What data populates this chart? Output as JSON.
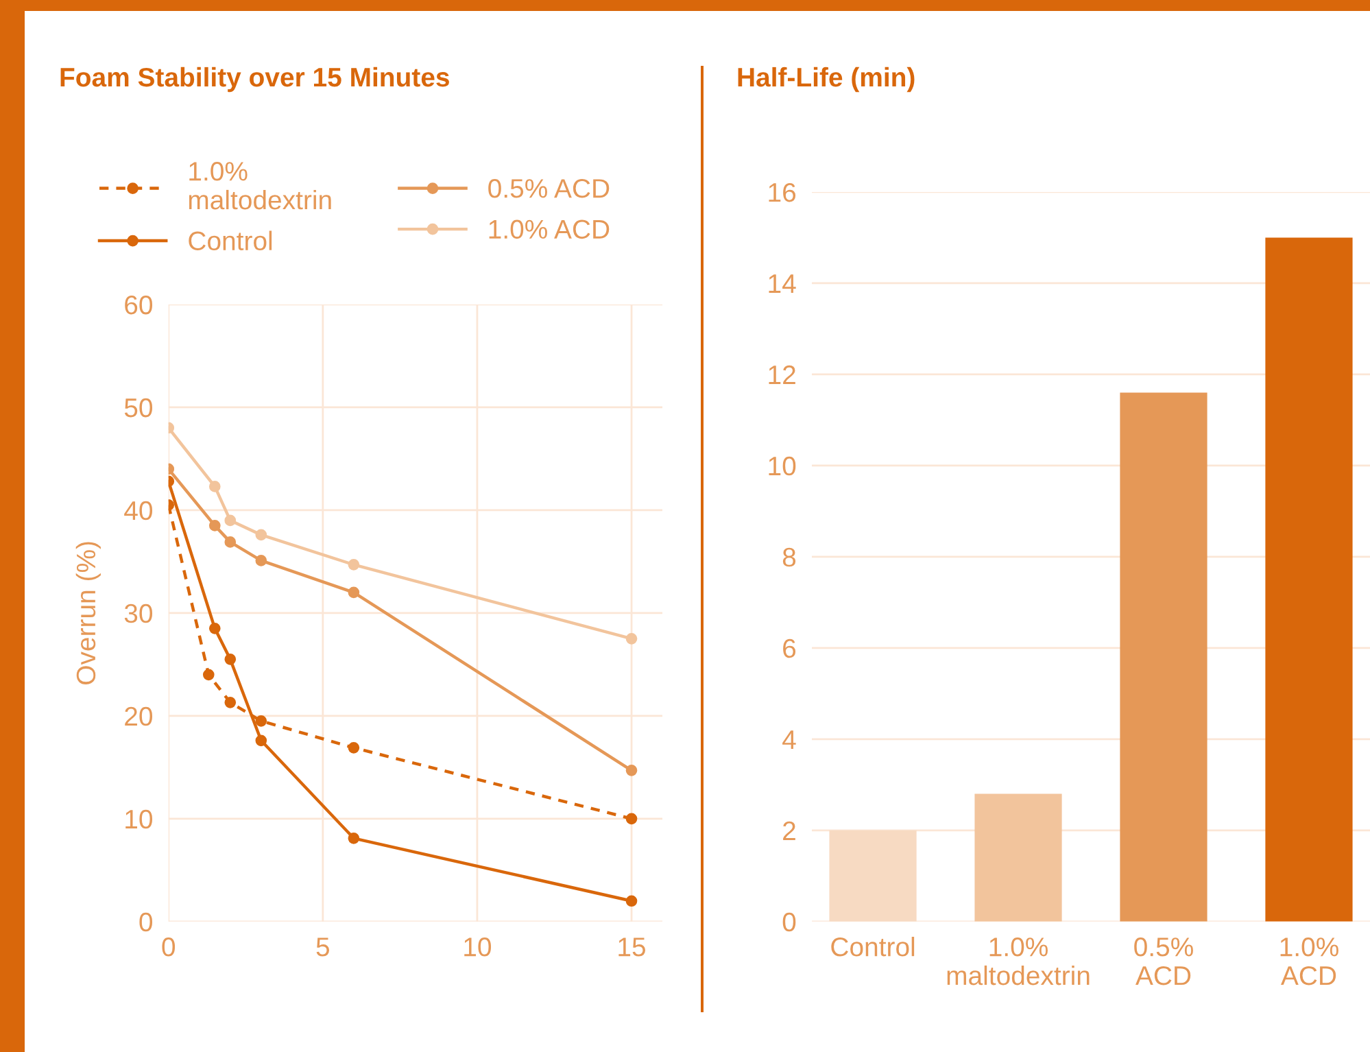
{
  "chart_data": [
    {
      "type": "line",
      "title": "Foam Stability over 15 Minutes",
      "ylabel": "Overrun (%)",
      "xlim": [
        0,
        16
      ],
      "ylim": [
        0,
        60
      ],
      "xticks": [
        0,
        5,
        10,
        15
      ],
      "yticks": [
        0,
        10,
        20,
        30,
        40,
        50,
        60
      ],
      "grid": true,
      "legend": "top",
      "marker": "circle",
      "series": [
        {
          "name": "1.0%\nmaltodextrin",
          "color": "#d9670b",
          "line_style": "dashed",
          "x": [
            0,
            1.3,
            2,
            3,
            6,
            15
          ],
          "values": [
            40.5,
            24,
            21.3,
            19.5,
            16.9,
            10
          ]
        },
        {
          "name": "Control",
          "color": "#d9670b",
          "line_style": "solid",
          "x": [
            0,
            1.5,
            2,
            3,
            6,
            15
          ],
          "values": [
            42.8,
            28.5,
            25.5,
            17.6,
            8.1,
            2.0
          ]
        },
        {
          "name": "0.5% ACD",
          "color": "#e59857",
          "line_style": "solid",
          "x": [
            0,
            1.5,
            2,
            3,
            6,
            15
          ],
          "values": [
            44,
            38.5,
            36.9,
            35.1,
            32,
            14.7
          ]
        },
        {
          "name": "1.0% ACD",
          "color": "#f2c49c",
          "line_style": "solid",
          "x": [
            0,
            1.5,
            2,
            3,
            6,
            15
          ],
          "values": [
            48,
            42.3,
            39,
            37.6,
            34.7,
            27.5
          ]
        }
      ]
    },
    {
      "type": "bar",
      "title": "Half-Life (min)",
      "categories": [
        "Control",
        "1.0%\nmaltodextrin",
        "0.5%\nACD",
        "1.0%\nACD"
      ],
      "values": [
        2.0,
        2.8,
        11.6,
        15.0
      ],
      "colors": [
        "#f7dac2",
        "#f2c49c",
        "#e59857",
        "#d9670b"
      ],
      "ylim": [
        0,
        16
      ],
      "yticks": [
        0,
        2,
        4,
        6,
        8,
        10,
        12,
        14,
        16
      ],
      "grid": "y"
    }
  ]
}
